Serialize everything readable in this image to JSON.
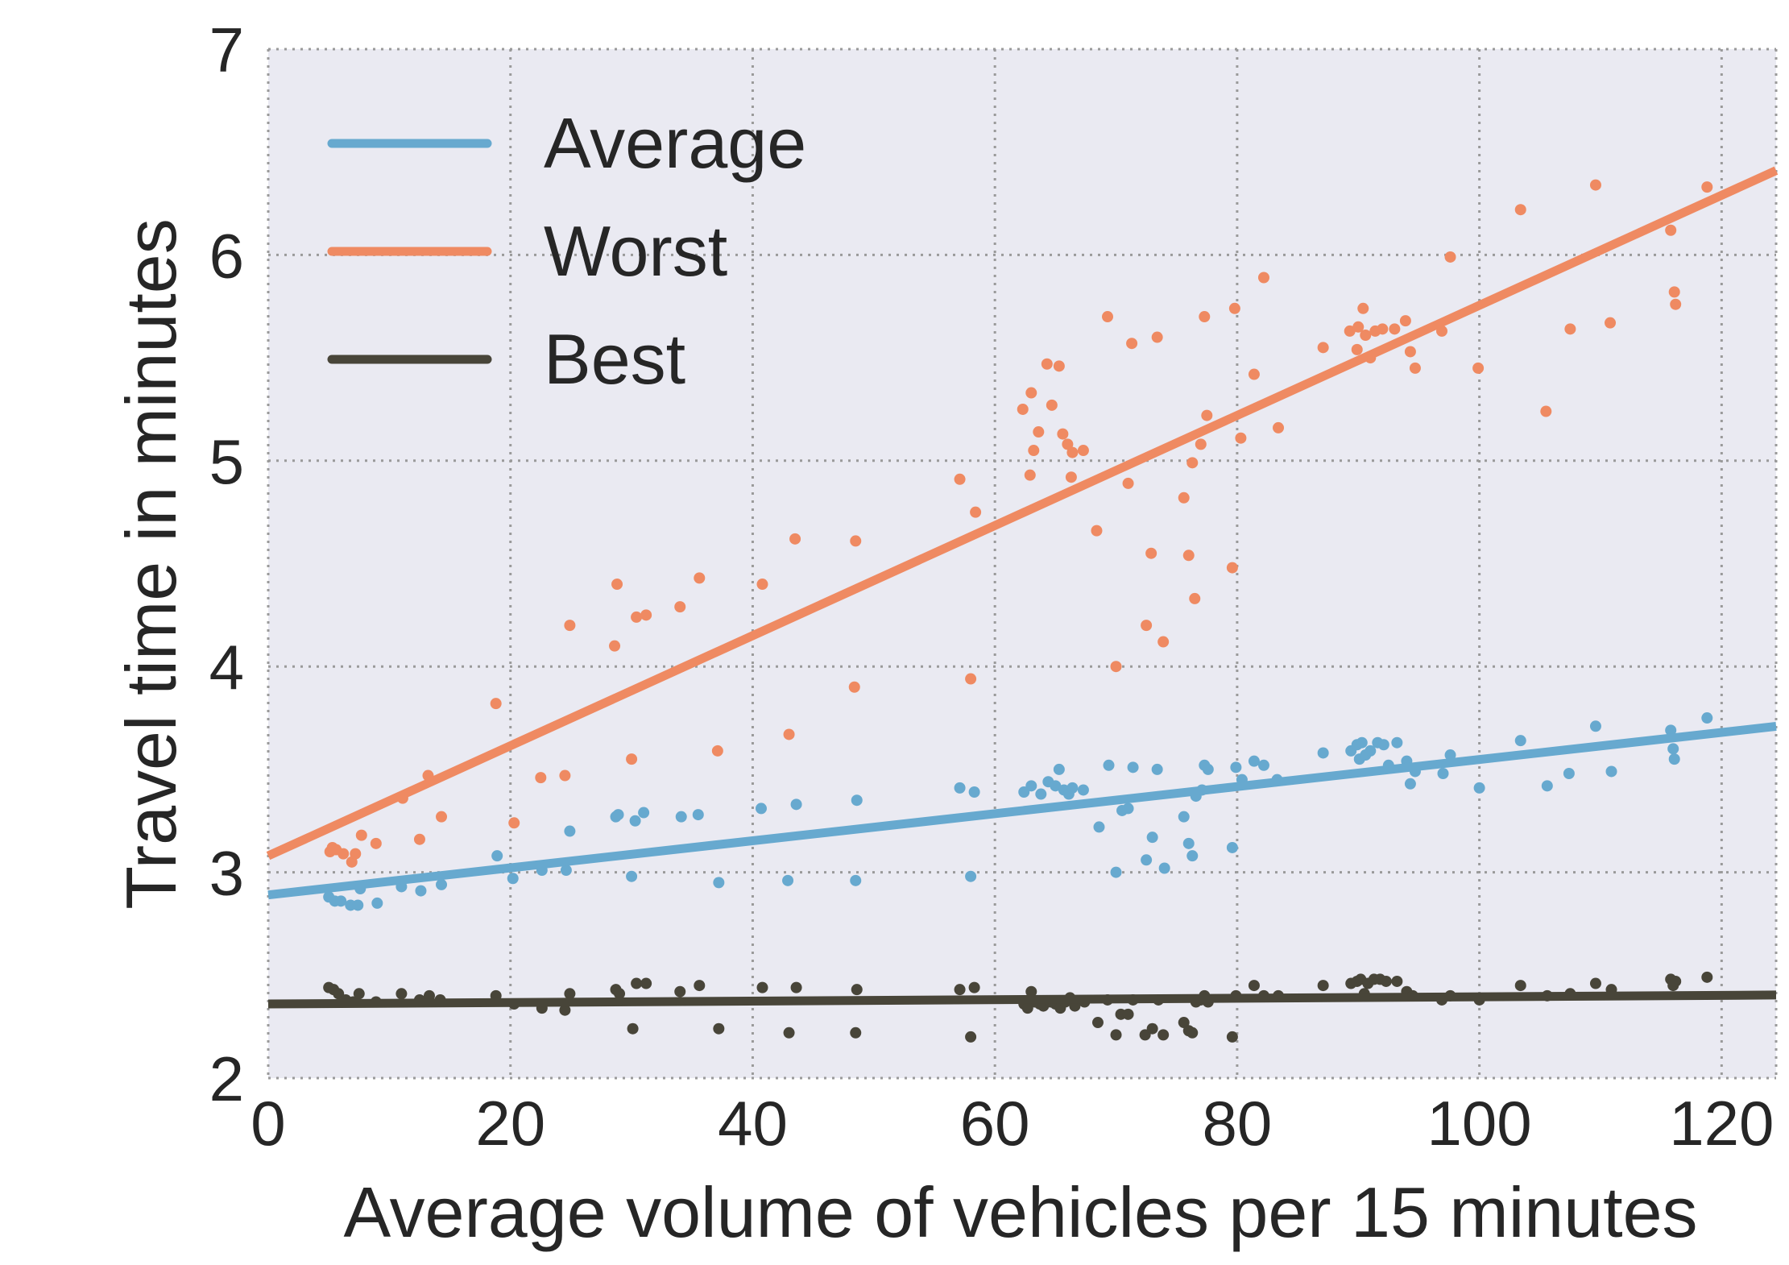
{
  "chart_data": {
    "type": "scatter",
    "title": "",
    "xlabel": "Average volume of vehicles per 15 minutes",
    "ylabel": "Travel time in minutes",
    "xlim": [
      0,
      124.5
    ],
    "ylim": [
      2,
      7
    ],
    "x_ticks": [
      0,
      20,
      40,
      60,
      80,
      100,
      120
    ],
    "y_ticks": [
      2,
      3,
      4,
      5,
      6,
      7
    ],
    "grid": true,
    "legend_position": "top-left",
    "background_color": "#eaeaf2",
    "series": [
      {
        "name": "Average",
        "color": "#67a9cf",
        "fit": {
          "intercept": 2.89,
          "slope": 0.00658
        },
        "points": [
          [
            5.0,
            2.88
          ],
          [
            5.5,
            2.86
          ],
          [
            6.0,
            2.86
          ],
          [
            6.8,
            2.84
          ],
          [
            7.4,
            2.84
          ],
          [
            7.6,
            2.92
          ],
          [
            9.0,
            2.85
          ],
          [
            11.0,
            2.93
          ],
          [
            12.6,
            2.91
          ],
          [
            14.3,
            2.94
          ],
          [
            18.9,
            3.08
          ],
          [
            20.2,
            2.97
          ],
          [
            22.6,
            3.01
          ],
          [
            24.6,
            3.01
          ],
          [
            24.9,
            3.2
          ],
          [
            28.7,
            3.27
          ],
          [
            28.9,
            3.28
          ],
          [
            30.0,
            2.98
          ],
          [
            30.3,
            3.25
          ],
          [
            31.0,
            3.29
          ],
          [
            34.1,
            3.27
          ],
          [
            35.5,
            3.28
          ],
          [
            37.2,
            2.95
          ],
          [
            40.7,
            3.31
          ],
          [
            42.9,
            2.96
          ],
          [
            43.6,
            3.33
          ],
          [
            48.5,
            2.96
          ],
          [
            48.6,
            3.35
          ],
          [
            57.1,
            3.41
          ],
          [
            58.0,
            2.98
          ],
          [
            58.3,
            3.39
          ],
          [
            62.4,
            3.39
          ],
          [
            63.0,
            3.42
          ],
          [
            63.8,
            3.38
          ],
          [
            64.4,
            3.44
          ],
          [
            65.0,
            3.42
          ],
          [
            65.3,
            3.5
          ],
          [
            65.7,
            3.4
          ],
          [
            66.1,
            3.38
          ],
          [
            66.4,
            3.41
          ],
          [
            67.3,
            3.4
          ],
          [
            68.6,
            3.22
          ],
          [
            69.4,
            3.52
          ],
          [
            70.0,
            3.0
          ],
          [
            70.5,
            3.3
          ],
          [
            71.0,
            3.31
          ],
          [
            71.4,
            3.51
          ],
          [
            72.5,
            3.06
          ],
          [
            73.0,
            3.17
          ],
          [
            73.4,
            3.5
          ],
          [
            74.0,
            3.02
          ],
          [
            75.6,
            3.27
          ],
          [
            76.0,
            3.14
          ],
          [
            76.3,
            3.08
          ],
          [
            76.6,
            3.37
          ],
          [
            77.1,
            3.4
          ],
          [
            77.3,
            3.52
          ],
          [
            77.6,
            3.5
          ],
          [
            79.6,
            3.12
          ],
          [
            79.9,
            3.51
          ],
          [
            80.4,
            3.45
          ],
          [
            81.4,
            3.54
          ],
          [
            82.2,
            3.52
          ],
          [
            83.3,
            3.45
          ],
          [
            87.1,
            3.58
          ],
          [
            89.4,
            3.59
          ],
          [
            89.9,
            3.62
          ],
          [
            90.1,
            3.55
          ],
          [
            90.3,
            3.63
          ],
          [
            90.6,
            3.57
          ],
          [
            91.0,
            3.59
          ],
          [
            91.6,
            3.63
          ],
          [
            92.1,
            3.62
          ],
          [
            92.5,
            3.52
          ],
          [
            93.2,
            3.63
          ],
          [
            94.0,
            3.54
          ],
          [
            94.3,
            3.43
          ],
          [
            94.7,
            3.49
          ],
          [
            97.0,
            3.48
          ],
          [
            97.6,
            3.57
          ],
          [
            100.0,
            3.41
          ],
          [
            103.4,
            3.64
          ],
          [
            105.6,
            3.42
          ],
          [
            107.4,
            3.48
          ],
          [
            109.6,
            3.71
          ],
          [
            110.9,
            3.49
          ],
          [
            115.8,
            3.69
          ],
          [
            116.0,
            3.6
          ],
          [
            116.1,
            3.55
          ],
          [
            118.8,
            3.75
          ]
        ]
      },
      {
        "name": "Worst",
        "color": "#ef8a62",
        "fit": {
          "intercept": 3.08,
          "slope": 0.02675
        },
        "points": [
          [
            5.1,
            3.1
          ],
          [
            5.3,
            3.12
          ],
          [
            5.6,
            3.11
          ],
          [
            6.2,
            3.09
          ],
          [
            6.9,
            3.05
          ],
          [
            7.2,
            3.09
          ],
          [
            7.7,
            3.18
          ],
          [
            8.9,
            3.14
          ],
          [
            11.1,
            3.36
          ],
          [
            12.5,
            3.16
          ],
          [
            13.2,
            3.47
          ],
          [
            14.3,
            3.27
          ],
          [
            18.8,
            3.82
          ],
          [
            20.3,
            3.24
          ],
          [
            22.5,
            3.46
          ],
          [
            24.5,
            3.47
          ],
          [
            24.9,
            4.2
          ],
          [
            28.6,
            4.1
          ],
          [
            28.8,
            4.4
          ],
          [
            30.0,
            3.55
          ],
          [
            30.4,
            4.24
          ],
          [
            31.2,
            4.25
          ],
          [
            34.0,
            4.29
          ],
          [
            35.6,
            4.43
          ],
          [
            37.1,
            3.59
          ],
          [
            40.8,
            4.4
          ],
          [
            43.0,
            3.67
          ],
          [
            43.5,
            4.62
          ],
          [
            48.4,
            3.9
          ],
          [
            48.5,
            4.61
          ],
          [
            57.1,
            4.91
          ],
          [
            58.0,
            3.94
          ],
          [
            58.4,
            4.75
          ],
          [
            62.3,
            5.25
          ],
          [
            62.9,
            4.93
          ],
          [
            63.0,
            5.33
          ],
          [
            63.2,
            5.05
          ],
          [
            63.6,
            5.14
          ],
          [
            64.3,
            5.47
          ],
          [
            64.7,
            5.27
          ],
          [
            65.3,
            5.46
          ],
          [
            65.6,
            5.13
          ],
          [
            66.0,
            5.08
          ],
          [
            66.3,
            4.92
          ],
          [
            66.4,
            5.04
          ],
          [
            67.3,
            5.05
          ],
          [
            68.4,
            4.66
          ],
          [
            69.3,
            5.7
          ],
          [
            70.0,
            4.0
          ],
          [
            71.0,
            4.89
          ],
          [
            71.3,
            5.57
          ],
          [
            72.5,
            4.2
          ],
          [
            72.9,
            4.55
          ],
          [
            73.4,
            5.6
          ],
          [
            73.9,
            4.12
          ],
          [
            75.6,
            4.82
          ],
          [
            76.0,
            4.54
          ],
          [
            76.3,
            4.99
          ],
          [
            76.5,
            4.33
          ],
          [
            77.0,
            5.08
          ],
          [
            77.3,
            5.7
          ],
          [
            77.5,
            5.22
          ],
          [
            79.6,
            4.48
          ],
          [
            79.8,
            5.74
          ],
          [
            80.3,
            5.11
          ],
          [
            81.4,
            5.42
          ],
          [
            82.2,
            5.89
          ],
          [
            83.4,
            5.16
          ],
          [
            87.1,
            5.55
          ],
          [
            89.3,
            5.63
          ],
          [
            89.9,
            5.54
          ],
          [
            90.0,
            5.65
          ],
          [
            90.4,
            5.74
          ],
          [
            90.6,
            5.61
          ],
          [
            91.0,
            5.5
          ],
          [
            91.4,
            5.63
          ],
          [
            92.0,
            5.64
          ],
          [
            93.0,
            5.64
          ],
          [
            93.9,
            5.68
          ],
          [
            94.3,
            5.53
          ],
          [
            94.7,
            5.45
          ],
          [
            96.9,
            5.63
          ],
          [
            97.6,
            5.99
          ],
          [
            99.9,
            5.45
          ],
          [
            103.4,
            6.22
          ],
          [
            105.5,
            5.24
          ],
          [
            107.5,
            5.64
          ],
          [
            109.6,
            6.34
          ],
          [
            110.8,
            5.67
          ],
          [
            115.8,
            6.12
          ],
          [
            116.1,
            5.82
          ],
          [
            116.2,
            5.76
          ],
          [
            118.8,
            6.33
          ]
        ]
      },
      {
        "name": "Best",
        "color": "#484539",
        "fit": {
          "intercept": 2.36,
          "slope": 0.00035
        },
        "points": [
          [
            5.0,
            2.44
          ],
          [
            5.4,
            2.43
          ],
          [
            5.8,
            2.41
          ],
          [
            6.4,
            2.38
          ],
          [
            7.0,
            2.37
          ],
          [
            7.5,
            2.41
          ],
          [
            8.9,
            2.37
          ],
          [
            11.0,
            2.41
          ],
          [
            12.5,
            2.38
          ],
          [
            13.3,
            2.4
          ],
          [
            14.2,
            2.38
          ],
          [
            18.8,
            2.4
          ],
          [
            20.3,
            2.36
          ],
          [
            22.6,
            2.34
          ],
          [
            24.5,
            2.33
          ],
          [
            24.9,
            2.41
          ],
          [
            28.7,
            2.43
          ],
          [
            29.0,
            2.41
          ],
          [
            30.1,
            2.24
          ],
          [
            30.4,
            2.46
          ],
          [
            31.2,
            2.46
          ],
          [
            34.0,
            2.42
          ],
          [
            35.6,
            2.45
          ],
          [
            37.2,
            2.24
          ],
          [
            40.8,
            2.44
          ],
          [
            43.0,
            2.22
          ],
          [
            43.6,
            2.44
          ],
          [
            48.5,
            2.22
          ],
          [
            48.6,
            2.43
          ],
          [
            57.1,
            2.43
          ],
          [
            58.0,
            2.2
          ],
          [
            58.3,
            2.44
          ],
          [
            62.4,
            2.36
          ],
          [
            62.7,
            2.34
          ],
          [
            63.0,
            2.42
          ],
          [
            63.3,
            2.37
          ],
          [
            63.7,
            2.36
          ],
          [
            64.0,
            2.35
          ],
          [
            64.6,
            2.37
          ],
          [
            65.0,
            2.36
          ],
          [
            65.4,
            2.34
          ],
          [
            65.8,
            2.37
          ],
          [
            66.2,
            2.39
          ],
          [
            66.6,
            2.35
          ],
          [
            67.4,
            2.37
          ],
          [
            68.5,
            2.27
          ],
          [
            69.3,
            2.38
          ],
          [
            70.0,
            2.21
          ],
          [
            70.4,
            2.31
          ],
          [
            71.0,
            2.31
          ],
          [
            71.4,
            2.38
          ],
          [
            72.4,
            2.21
          ],
          [
            73.0,
            2.24
          ],
          [
            73.5,
            2.38
          ],
          [
            73.9,
            2.21
          ],
          [
            75.6,
            2.27
          ],
          [
            76.0,
            2.23
          ],
          [
            76.3,
            2.22
          ],
          [
            76.6,
            2.37
          ],
          [
            77.0,
            2.38
          ],
          [
            77.3,
            2.4
          ],
          [
            77.6,
            2.37
          ],
          [
            79.6,
            2.2
          ],
          [
            79.9,
            2.4
          ],
          [
            81.4,
            2.45
          ],
          [
            82.2,
            2.4
          ],
          [
            83.4,
            2.4
          ],
          [
            87.1,
            2.45
          ],
          [
            89.4,
            2.46
          ],
          [
            89.9,
            2.47
          ],
          [
            90.2,
            2.48
          ],
          [
            90.5,
            2.41
          ],
          [
            90.8,
            2.46
          ],
          [
            91.3,
            2.48
          ],
          [
            91.8,
            2.48
          ],
          [
            92.3,
            2.47
          ],
          [
            93.2,
            2.47
          ],
          [
            94.0,
            2.42
          ],
          [
            94.5,
            2.4
          ],
          [
            96.9,
            2.38
          ],
          [
            97.6,
            2.4
          ],
          [
            100.0,
            2.38
          ],
          [
            103.4,
            2.45
          ],
          [
            105.6,
            2.4
          ],
          [
            107.5,
            2.41
          ],
          [
            109.6,
            2.46
          ],
          [
            110.9,
            2.43
          ],
          [
            115.8,
            2.48
          ],
          [
            116.0,
            2.45
          ],
          [
            116.2,
            2.47
          ],
          [
            118.8,
            2.49
          ]
        ]
      }
    ]
  }
}
